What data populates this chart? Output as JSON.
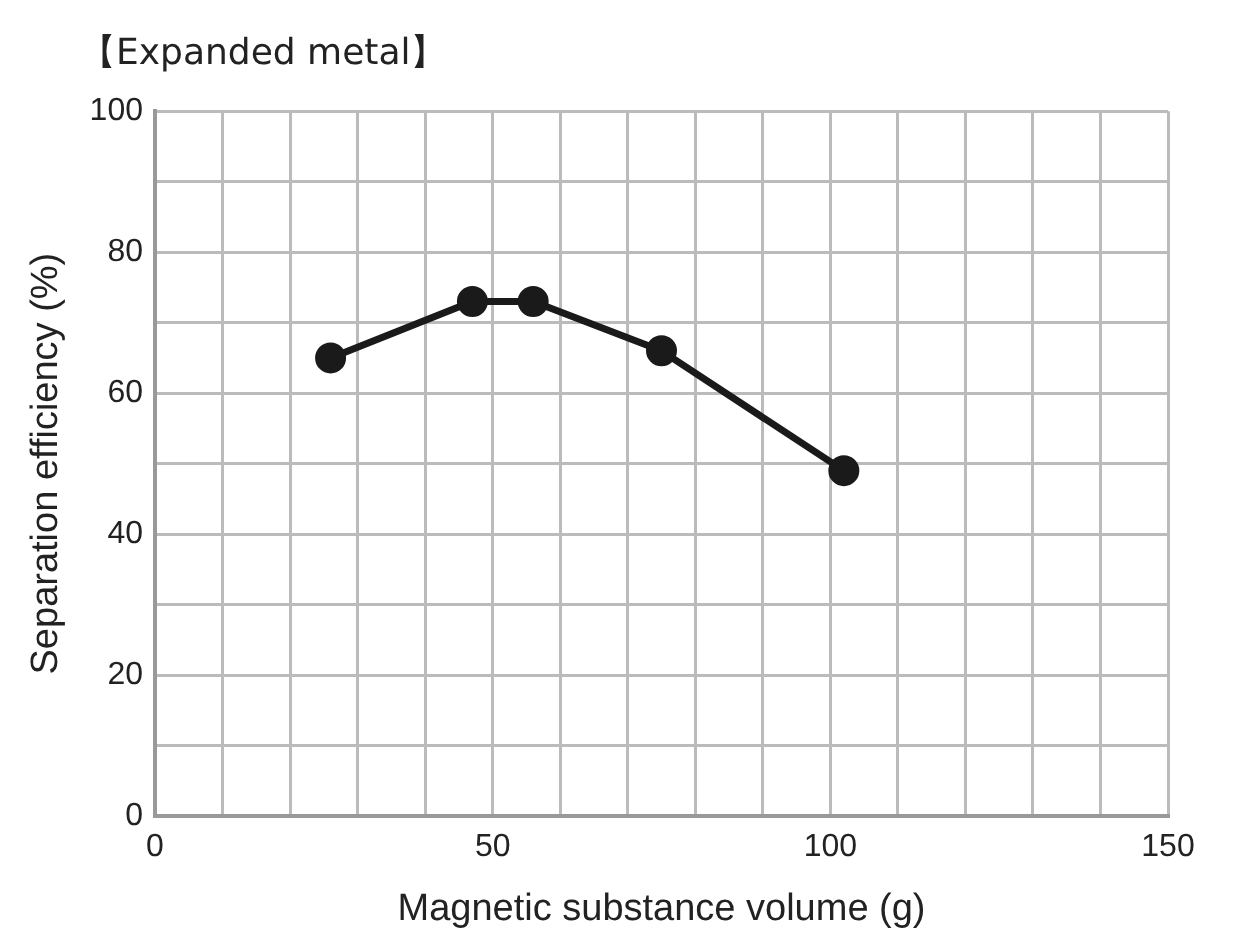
{
  "chart_data": {
    "type": "line",
    "title": "【Expanded metal】",
    "xlabel": "Magnetic substance volume (g)",
    "ylabel": "Separation efficiency (%)",
    "x": [
      26,
      47,
      56,
      75,
      102
    ],
    "series": [
      {
        "color": "#1a1a1a",
        "values": [
          65,
          73,
          73,
          66,
          49
        ]
      }
    ],
    "xlim": [
      0,
      150
    ],
    "ylim": [
      0,
      100
    ],
    "xticks": [
      0,
      {
        "value": 10,
        "label": null
      },
      {
        "value": 20,
        "label": null
      },
      {
        "value": 30,
        "label": null
      },
      {
        "value": 40,
        "label": null
      },
      50,
      {
        "value": 60,
        "label": null
      },
      {
        "value": 70,
        "label": null
      },
      {
        "value": 80,
        "label": null
      },
      {
        "value": 90,
        "label": null
      },
      100,
      {
        "value": 110,
        "label": null
      },
      {
        "value": 120,
        "label": null
      },
      {
        "value": 130,
        "label": null
      },
      {
        "value": 140,
        "label": null
      },
      150
    ],
    "yticks": [
      0,
      {
        "value": 10,
        "label": null
      },
      20,
      {
        "value": 30,
        "label": null
      },
      40,
      {
        "value": 50,
        "label": null
      },
      60,
      {
        "value": 70,
        "label": null
      },
      80,
      {
        "value": 90,
        "label": null
      },
      100
    ],
    "grid": true,
    "legend": false,
    "marker": "circle",
    "line_style": "solid"
  }
}
